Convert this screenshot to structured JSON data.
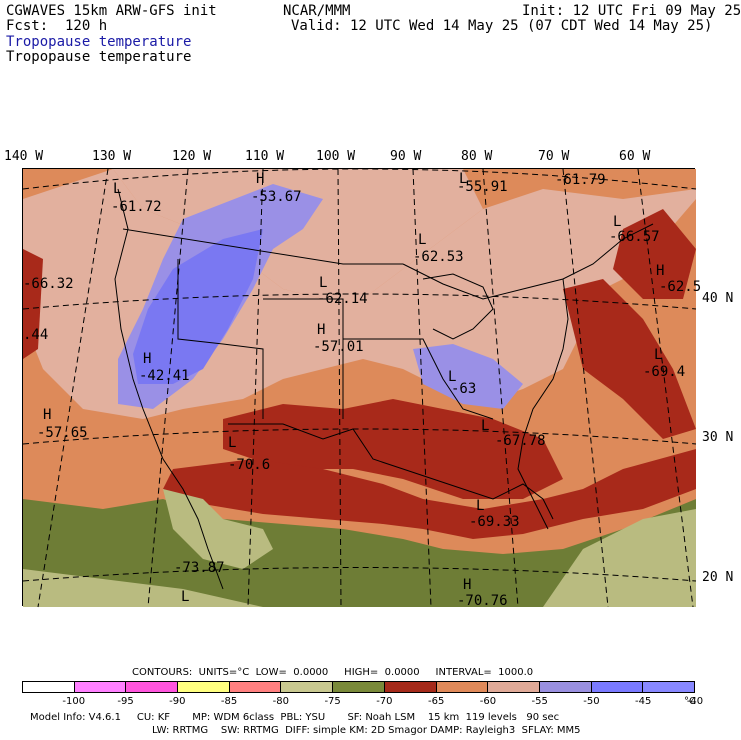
{
  "header": {
    "model": "CGWAVES 15km ARW-GFS init",
    "org": "NCAR/MMM",
    "init": "Init: 12 UTC Fri 09 May 25",
    "fcst": "Fcst:  120 h",
    "valid": "Valid: 12 UTC Wed 14 May 25 (07 CDT Wed 14 May 25)",
    "title1": "Tropopause temperature",
    "title2": "Tropopause temperature"
  },
  "longitudes": [
    "140 W",
    "130 W",
    "120 W",
    "110 W",
    "100 W",
    "90 W",
    "80 W",
    "70 W",
    "60 W"
  ],
  "latitudes": [
    "40 N",
    "30 N",
    "20 N"
  ],
  "map_labels": [
    {
      "text": "L",
      "name": "low-marker"
    },
    {
      "text": "-61.72",
      "name": "value-label"
    },
    {
      "text": "H",
      "name": "high-marker"
    },
    {
      "text": "-53.67",
      "name": "value-label"
    },
    {
      "text": "L",
      "name": "low-marker"
    },
    {
      "text": "-55.91",
      "name": "value-label"
    },
    {
      "text": "-61.79",
      "name": "value-label"
    },
    {
      "text": "-66.32",
      "name": "value-label"
    },
    {
      "text": "L",
      "name": "low-marker"
    },
    {
      "text": "-62.53",
      "name": "value-label"
    },
    {
      "text": "L",
      "name": "low-marker"
    },
    {
      "text": "-66.57",
      "name": "value-label"
    },
    {
      "text": "H",
      "name": "high-marker"
    },
    {
      "text": "-62.5",
      "name": "value-label"
    },
    {
      "text": "L",
      "name": "low-marker"
    },
    {
      "text": "-62.14",
      "name": "value-label"
    },
    {
      "text": "H",
      "name": "high-marker"
    },
    {
      "text": "-57.01",
      "name": "value-label"
    },
    {
      "text": "H",
      "name": "high-marker"
    },
    {
      "text": "-42.41",
      "name": "value-label"
    },
    {
      "text": ".44",
      "name": "value-label"
    },
    {
      "text": "L",
      "name": "low-marker"
    },
    {
      "text": "-69.4",
      "name": "value-label"
    },
    {
      "text": "L",
      "name": "low-marker"
    },
    {
      "text": "-63",
      "name": "value-label"
    },
    {
      "text": "H",
      "name": "high-marker"
    },
    {
      "text": "-57.65",
      "name": "value-label"
    },
    {
      "text": "L",
      "name": "low-marker"
    },
    {
      "text": "-70.6",
      "name": "value-label"
    },
    {
      "text": "L",
      "name": "low-marker"
    },
    {
      "text": "-67.78",
      "name": "value-label"
    },
    {
      "text": "L",
      "name": "low-marker"
    },
    {
      "text": "-69.33",
      "name": "value-label"
    },
    {
      "text": "-73.87",
      "name": "value-label"
    },
    {
      "text": "L",
      "name": "low-marker"
    },
    {
      "text": "H",
      "name": "high-marker"
    },
    {
      "text": "-70.76",
      "name": "value-label"
    }
  ],
  "contours": "CONTOURS:  UNITS=°C  LOW=  0.0000     HIGH=  0.0000     INTERVAL=  1000.0",
  "colorbar": {
    "colors": [
      "#ffffff",
      "#ff80ff",
      "#ff55dd",
      "#ffff80",
      "#ff8080",
      "#c8c890",
      "#7a8a3a",
      "#6a7a2a",
      "#a52a1a",
      "#cc4a2a",
      "#e08a5a",
      "#e0aa98",
      "#9a90e0",
      "#7a7aff",
      "#6a6af5",
      "#8888ff"
    ],
    "ticks": [
      "-100",
      "-95",
      "-90",
      "-85",
      "-80",
      "-75",
      "-70",
      "-65",
      "-60",
      "-55",
      "-50",
      "-45",
      "-40"
    ],
    "unit": "°C"
  },
  "footer": {
    "line1": "Model Info: V4.6.1     CU: KF       MP: WDM 6class  PBL: YSU       SF: Noah LSM    15 km  119 levels   90 sec",
    "line2": "LW: RRTMG    SW: RRTMG  DIFF: simple KM: 2D Smagor DAMP: Rayleigh3  SFLAY: MM5"
  },
  "palette": {
    "red": "#a8291a",
    "orange": "#dd8a5a",
    "pink": "#e2b09e",
    "green": "#6e7d36",
    "khaki": "#b9bb80",
    "purple_light": "#9a90e6",
    "purple": "#7a78f2"
  }
}
